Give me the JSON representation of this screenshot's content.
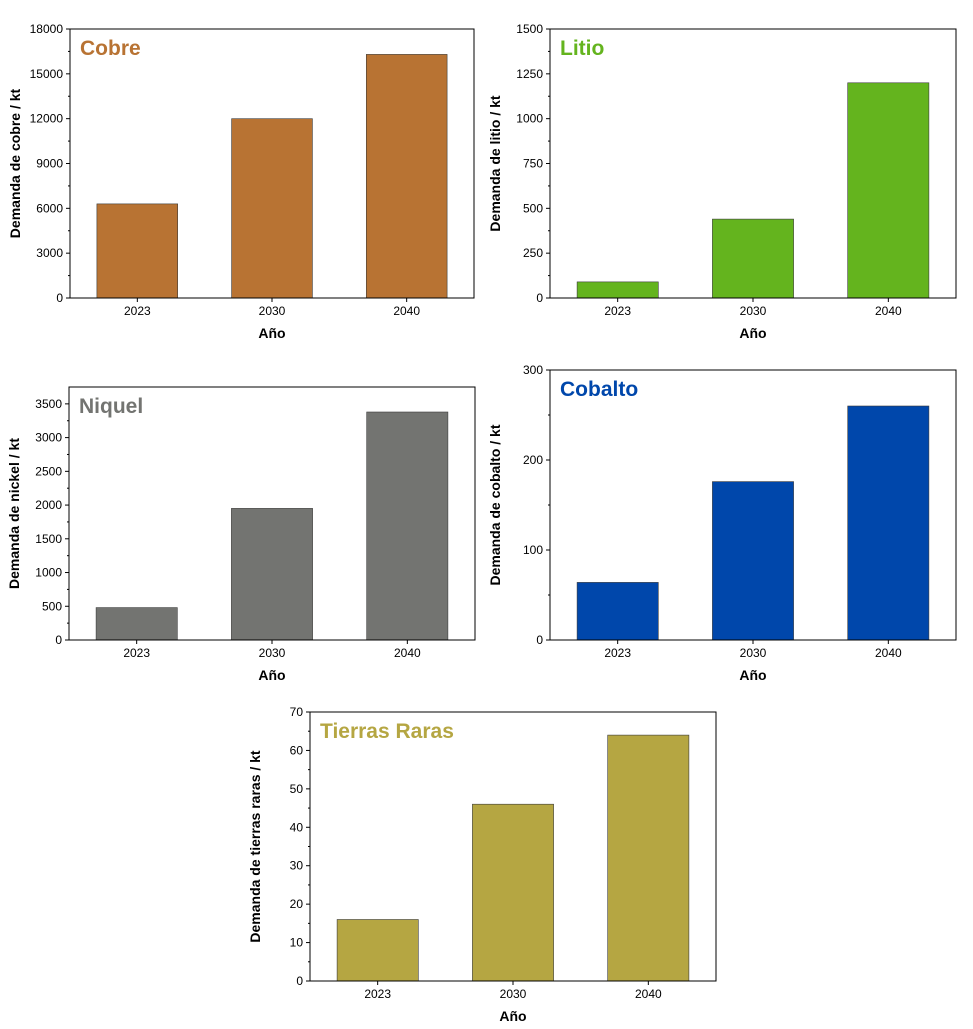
{
  "chart_data": [
    {
      "type": "bar",
      "title": "Cobre",
      "color": "#b87333",
      "categories": [
        "2023",
        "2030",
        "2040"
      ],
      "values": [
        6300,
        12000,
        16300
      ],
      "ylim": [
        0,
        18000
      ],
      "yticks": [
        0,
        3000,
        6000,
        9000,
        12000,
        15000,
        18000
      ],
      "xlabel": "Año",
      "ylabel": "Demanda de cobre / kt"
    },
    {
      "type": "bar",
      "title": "Litio",
      "color": "#64b41e",
      "categories": [
        "2023",
        "2030",
        "2040"
      ],
      "values": [
        90,
        440,
        1200
      ],
      "ylim": [
        0,
        1500
      ],
      "yticks": [
        0,
        250,
        500,
        750,
        1000,
        1250,
        1500
      ],
      "xlabel": "Año",
      "ylabel": "Demanda de litio / kt"
    },
    {
      "type": "bar",
      "title": "Niquel",
      "color": "#737471",
      "categories": [
        "2023",
        "2030",
        "2040"
      ],
      "values": [
        480,
        1950,
        3380
      ],
      "ylim": [
        0,
        3750
      ],
      "yticks": [
        0,
        500,
        1000,
        1500,
        2000,
        2500,
        3000,
        3500
      ],
      "xlabel": "Año",
      "ylabel": "Demanda de nickel / kt"
    },
    {
      "type": "bar",
      "title": "Cobalto",
      "color": "#0047ab",
      "categories": [
        "2023",
        "2030",
        "2040"
      ],
      "values": [
        64,
        176,
        260
      ],
      "ylim": [
        0,
        300
      ],
      "yticks": [
        0,
        100,
        200,
        300
      ],
      "xlabel": "Año",
      "ylabel": "Demanda de cobalto / kt"
    },
    {
      "type": "bar",
      "title": "Tierras Raras",
      "color": "#b5a642",
      "categories": [
        "2023",
        "2030",
        "2040"
      ],
      "values": [
        16,
        46,
        64
      ],
      "ylim": [
        0,
        70
      ],
      "yticks": [
        0,
        10,
        20,
        30,
        40,
        50,
        60,
        70
      ],
      "xlabel": "Año",
      "ylabel": "Demanda de tierras raras / kt"
    }
  ]
}
